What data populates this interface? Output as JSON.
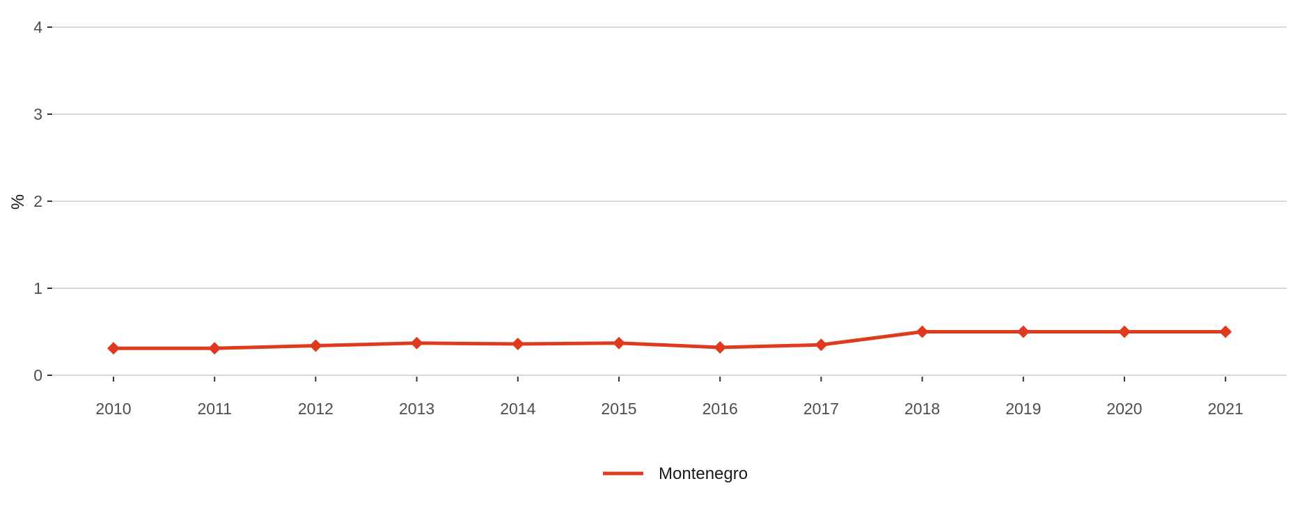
{
  "chart_data": {
    "type": "line",
    "title": "",
    "xlabel": "",
    "ylabel": "%",
    "x": [
      "2010",
      "2011",
      "2012",
      "2013",
      "2014",
      "2015",
      "2016",
      "2017",
      "2018",
      "2019",
      "2020",
      "2021"
    ],
    "series": [
      {
        "name": "Montenegro",
        "color": "#e03a1e",
        "marker": "diamond",
        "values": [
          0.31,
          0.31,
          0.34,
          0.37,
          0.36,
          0.37,
          0.32,
          0.35,
          0.5,
          0.5,
          0.5,
          0.5
        ]
      }
    ],
    "ylim": [
      0,
      4
    ],
    "yticks": [
      "0",
      "1",
      "2",
      "3",
      "4"
    ],
    "grid": "horizontal",
    "legend_position": "bottom-center"
  },
  "colors": {
    "grid": "#d9d9d9",
    "axis_text": "#4d4d4d",
    "title_text": "#1a1a1a"
  }
}
